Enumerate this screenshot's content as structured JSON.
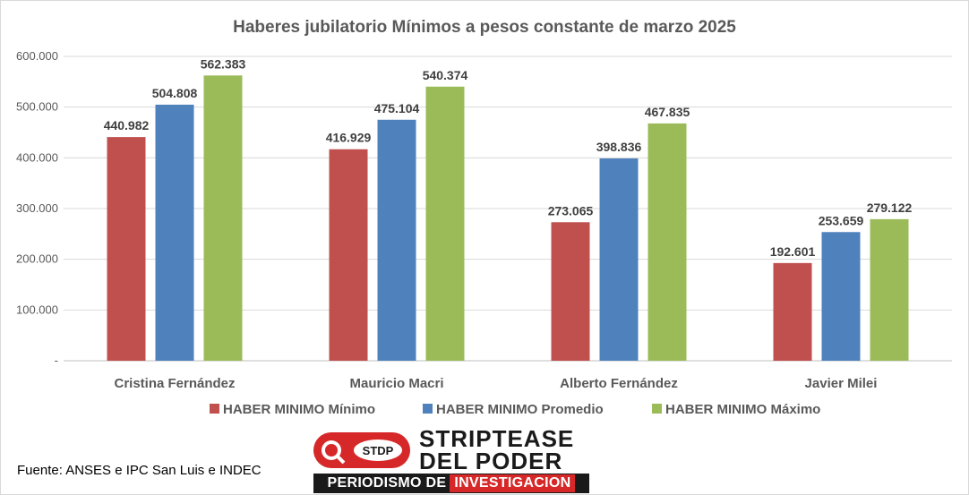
{
  "chart_data": {
    "type": "bar",
    "title": "Haberes jubilatorio Mínimos a pesos constante de marzo 2025",
    "categories": [
      "Cristina Fernández",
      "Mauricio Macri",
      "Alberto Fernández",
      "Javier Milei"
    ],
    "series": [
      {
        "name": "HABER MINIMO Mínimo",
        "color": "#c0504d",
        "values": [
          440982,
          416929,
          273065,
          192601
        ],
        "labels": [
          "440.982",
          "416.929",
          "273.065",
          "192.601"
        ]
      },
      {
        "name": "HABER MINIMO Promedio",
        "color": "#4f81bd",
        "values": [
          504808,
          475104,
          398836,
          253659
        ],
        "labels": [
          "504.808",
          "475.104",
          "398.836",
          "253.659"
        ]
      },
      {
        "name": "HABER MINIMO Máximo",
        "color": "#9bbb59",
        "values": [
          562383,
          540374,
          467835,
          279122
        ],
        "labels": [
          "562.383",
          "540.374",
          "467.835",
          "279.122"
        ]
      }
    ],
    "ylim": [
      0,
      600000
    ],
    "yticks": [
      0,
      100000,
      200000,
      300000,
      400000,
      500000,
      600000
    ],
    "ytick_labels": [
      "-",
      "100.000",
      "200.000",
      "300.000",
      "400.000",
      "500.000",
      "600.000"
    ],
    "xlabel": "",
    "ylabel": "",
    "grid": true,
    "legend_position": "bottom"
  },
  "source_note": "Fuente: ANSES e IPC San Luis e INDEC",
  "logo": {
    "icon_text": "STDP",
    "word1": "STRIPTEASE",
    "word2": "DEL PODER",
    "banner_part1": "PERIODISMO DE",
    "banner_part2": "INVESTIGACION"
  }
}
